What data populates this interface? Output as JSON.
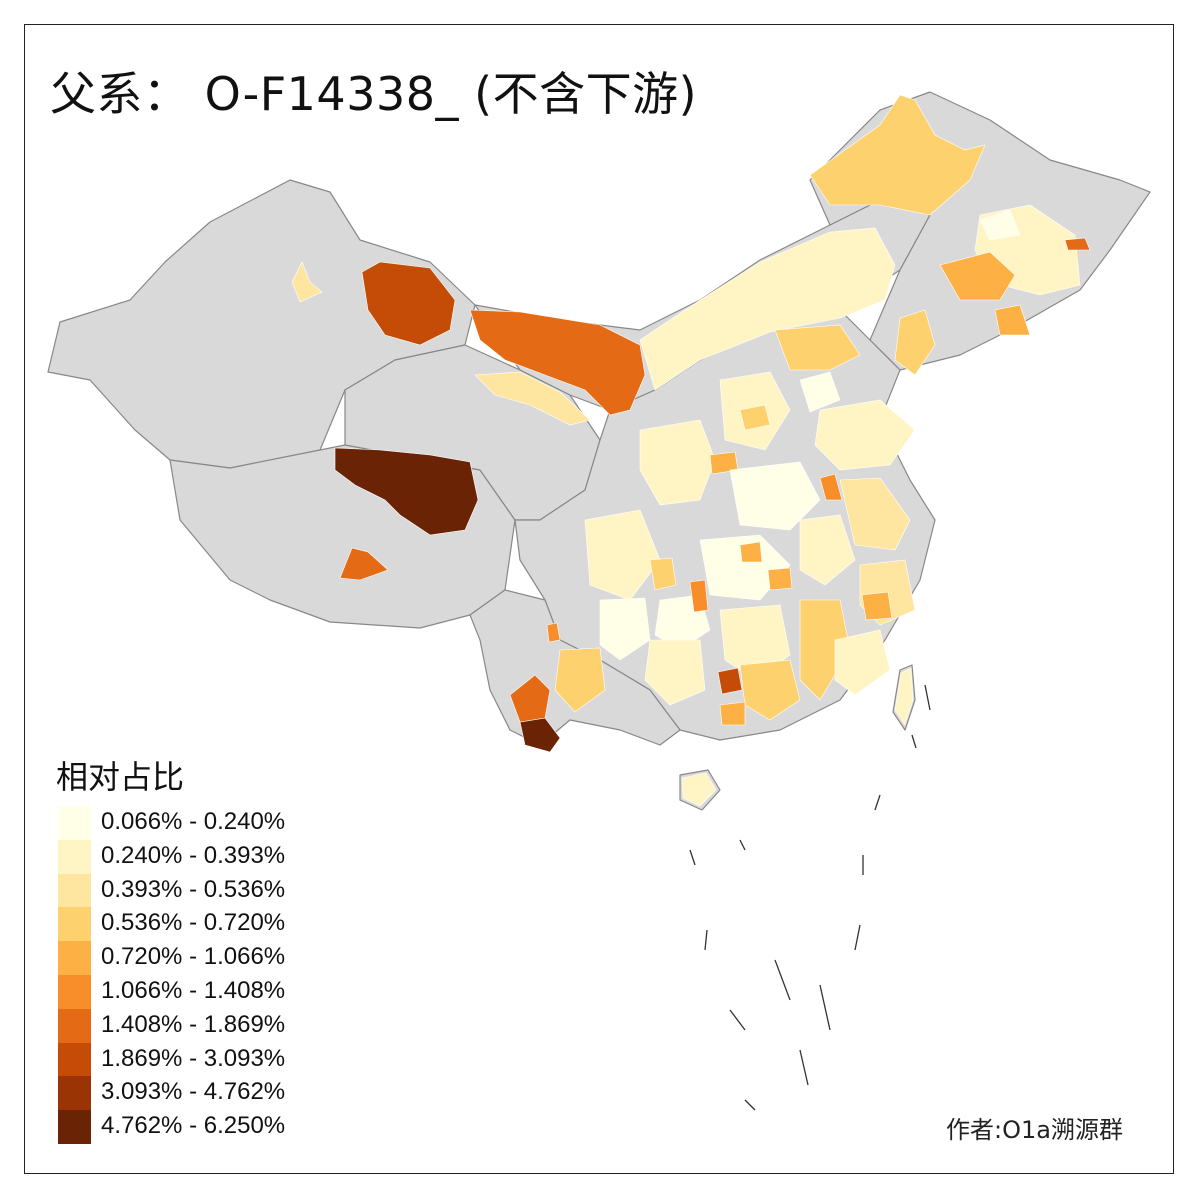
{
  "title": "父系： O-F14338_ (不含下游)",
  "legend": {
    "title": "相对占比",
    "items": [
      {
        "label": "0.066% - 0.240%",
        "color": "#FFFEE6"
      },
      {
        "label": "0.240% - 0.393%",
        "color": "#FFF5C4"
      },
      {
        "label": "0.393% - 0.536%",
        "color": "#FEE6A0"
      },
      {
        "label": "0.536% - 0.720%",
        "color": "#FED16F"
      },
      {
        "label": "0.720% - 1.066%",
        "color": "#FDB144"
      },
      {
        "label": "1.066% - 1.408%",
        "color": "#F88E2A"
      },
      {
        "label": "1.408% - 1.869%",
        "color": "#E56A15"
      },
      {
        "label": "1.869% - 3.093%",
        "color": "#C44C06"
      },
      {
        "label": "3.093% - 4.762%",
        "color": "#9A3405"
      },
      {
        "label": "4.762% - 6.250%",
        "color": "#6B2306"
      }
    ]
  },
  "no_data_color": "#D9D9D9",
  "author": "作者:O1a溯源群"
}
